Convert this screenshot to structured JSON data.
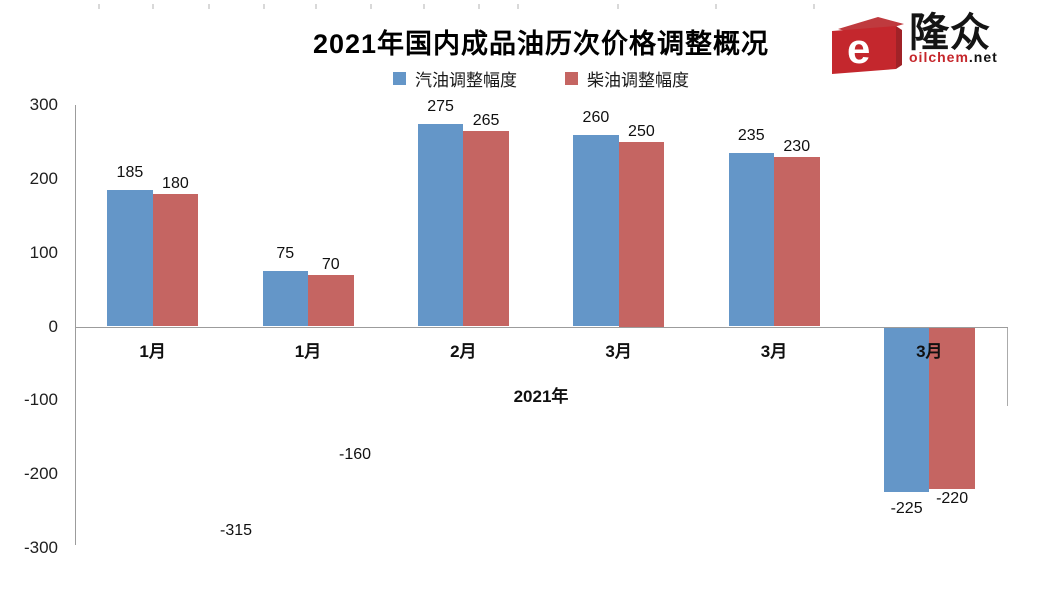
{
  "logo": {
    "brand": "隆众",
    "site_red": "oilchem",
    "site_black": ".net",
    "icon": "e-cube-icon",
    "icon_color": "#c4272d"
  },
  "chart_data": {
    "type": "bar",
    "title": "2021年国内成品油历次价格调整概况",
    "categories": [
      "1月",
      "1月",
      "2月",
      "3月",
      "3月",
      "3月"
    ],
    "series": [
      {
        "name": "汽油调整幅度",
        "color": "#6496C8",
        "values": [
          185,
          75,
          275,
          260,
          235,
          -225
        ]
      },
      {
        "name": "柴油调整幅度",
        "color": "#C56562",
        "values": [
          180,
          70,
          265,
          250,
          230,
          -220
        ]
      }
    ],
    "xlabel": "2021年",
    "ylim": [
      -300,
      300
    ],
    "yticks": [
      300,
      200,
      100,
      0,
      -100,
      -200,
      -300
    ],
    "legend_position": "top-center",
    "grid": false,
    "data_labels": "outside-end",
    "stray_labels": [
      {
        "text": "-160",
        "x": 355,
        "y": 455
      },
      {
        "text": "-315",
        "x": 236,
        "y": 531
      }
    ]
  }
}
